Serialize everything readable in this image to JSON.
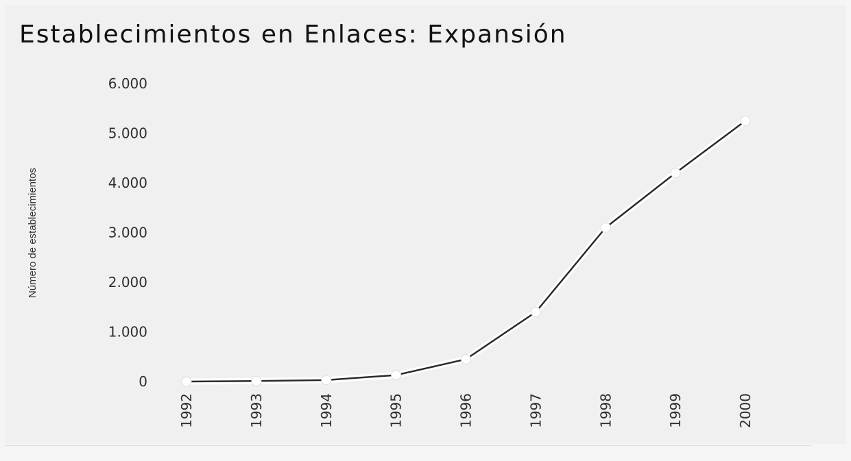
{
  "chart_data": {
    "type": "line",
    "title": "Establecimientos en Enlaces: Expansión",
    "xlabel": "",
    "ylabel": "Número de establecimientos",
    "x": [
      "1992",
      "1993",
      "1994",
      "1995",
      "1996",
      "1997",
      "1998",
      "1999",
      "2000"
    ],
    "series": [
      {
        "values": [
          0,
          10,
          30,
          130,
          450,
          1400,
          3100,
          4200,
          5250
        ]
      }
    ],
    "ylim": [
      0,
      6000
    ],
    "yticks": [
      {
        "value": 0,
        "label": "0"
      },
      {
        "value": 1000,
        "label": "1.000"
      },
      {
        "value": 2000,
        "label": "2.000"
      },
      {
        "value": 3000,
        "label": "3.000"
      },
      {
        "value": 4000,
        "label": "4.000"
      },
      {
        "value": 5000,
        "label": "5.000"
      },
      {
        "value": 6000,
        "label": "6.000"
      }
    ],
    "grid": false,
    "legend": "none",
    "line_color": "#2a2a2a",
    "marker_color": "#ffffff"
  }
}
